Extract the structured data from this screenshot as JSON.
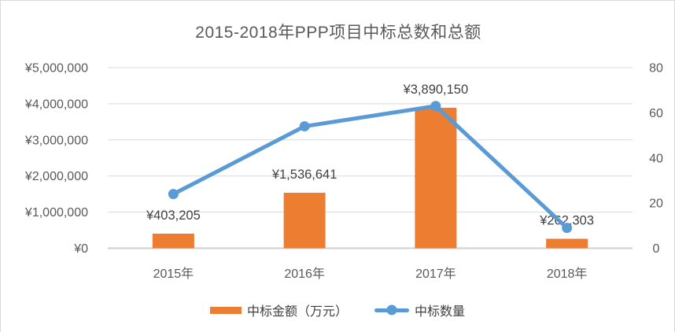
{
  "chart_data": {
    "type": "combo",
    "title": "2015-2018年PPP项目中标总数和总额",
    "categories": [
      "2015年",
      "2016年",
      "2017年",
      "2018年"
    ],
    "series": [
      {
        "name": "中标金额（万元）",
        "type": "bar",
        "axis": "left",
        "color": "#ED7D31",
        "values": [
          403205,
          1536641,
          3890150,
          262303
        ],
        "labels": [
          "¥403,205",
          "¥1,536,641",
          "¥3,890,150",
          "¥262,303"
        ]
      },
      {
        "name": "中标数量",
        "type": "line",
        "axis": "right",
        "color": "#5B9BD5",
        "values": [
          24,
          54,
          63,
          9
        ]
      }
    ],
    "left_axis": {
      "min": 0,
      "max": 5000000,
      "step": 1000000,
      "tick_labels": [
        "¥0",
        "¥1,000,000",
        "¥2,000,000",
        "¥3,000,000",
        "¥4,000,000",
        "¥5,000,000"
      ]
    },
    "right_axis": {
      "min": 0,
      "max": 80,
      "step": 20,
      "tick_labels": [
        "0",
        "20",
        "40",
        "60",
        "80"
      ]
    },
    "grid": true,
    "legend_position": "bottom"
  },
  "colors": {
    "bar": "#ED7D31",
    "line": "#5B9BD5",
    "gridline": "#D9D9D9",
    "axis_line": "#CFCFCF",
    "axis_text": "#595959",
    "data_label_text": "#404040",
    "title_text": "#595959"
  }
}
